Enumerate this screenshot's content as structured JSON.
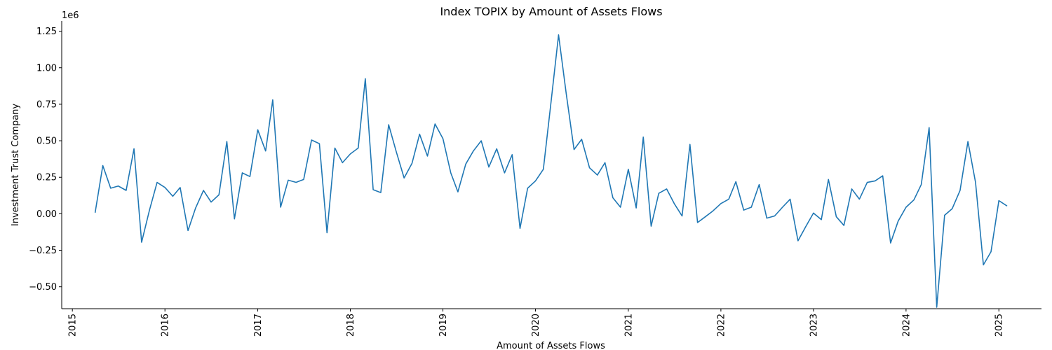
{
  "chart_data": {
    "type": "line",
    "title": "Index TOPIX by Amount of Assets Flows",
    "xlabel": "Amount of Assets Flows",
    "ylabel": "Investment Trust Company",
    "y_offset_label": "1e6",
    "y_scale_factor": 1000000,
    "xlim": [
      "2014-11-20",
      "2025-06-18"
    ],
    "ylim": [
      -650000,
      1320000
    ],
    "grid": false,
    "x_ticks": [
      {
        "value": "2015-01-01",
        "label": "2015"
      },
      {
        "value": "2016-01-01",
        "label": "2016"
      },
      {
        "value": "2017-01-01",
        "label": "2017"
      },
      {
        "value": "2018-01-01",
        "label": "2018"
      },
      {
        "value": "2019-01-01",
        "label": "2019"
      },
      {
        "value": "2020-01-01",
        "label": "2020"
      },
      {
        "value": "2021-01-01",
        "label": "2021"
      },
      {
        "value": "2022-01-01",
        "label": "2022"
      },
      {
        "value": "2023-01-01",
        "label": "2023"
      },
      {
        "value": "2024-01-01",
        "label": "2024"
      },
      {
        "value": "2025-01-01",
        "label": "2025"
      }
    ],
    "y_ticks": [
      {
        "value": -500000,
        "label": "−0.50"
      },
      {
        "value": -250000,
        "label": "−0.25"
      },
      {
        "value": 0,
        "label": "0.00"
      },
      {
        "value": 250000,
        "label": "0.25"
      },
      {
        "value": 500000,
        "label": "0.50"
      },
      {
        "value": 750000,
        "label": "0.75"
      },
      {
        "value": 1000000,
        "label": "1.00"
      },
      {
        "value": 1250000,
        "label": "1.25"
      }
    ],
    "series": [
      {
        "color": "#1f77b4",
        "x": [
          "2015-04-01",
          "2015-05-01",
          "2015-06-01",
          "2015-07-01",
          "2015-08-01",
          "2015-09-01",
          "2015-10-01",
          "2015-11-01",
          "2015-12-01",
          "2016-01-01",
          "2016-02-01",
          "2016-03-01",
          "2016-04-01",
          "2016-05-01",
          "2016-06-01",
          "2016-07-01",
          "2016-08-01",
          "2016-09-01",
          "2016-10-01",
          "2016-11-01",
          "2016-12-01",
          "2017-01-01",
          "2017-02-01",
          "2017-03-01",
          "2017-04-01",
          "2017-05-01",
          "2017-06-01",
          "2017-07-01",
          "2017-08-01",
          "2017-09-01",
          "2017-10-01",
          "2017-11-01",
          "2017-12-01",
          "2018-01-01",
          "2018-02-01",
          "2018-03-01",
          "2018-04-01",
          "2018-05-01",
          "2018-06-01",
          "2018-07-01",
          "2018-08-01",
          "2018-09-01",
          "2018-10-01",
          "2018-11-01",
          "2018-12-01",
          "2019-01-01",
          "2019-02-01",
          "2019-03-01",
          "2019-04-01",
          "2019-05-01",
          "2019-06-01",
          "2019-07-01",
          "2019-08-01",
          "2019-09-01",
          "2019-10-01",
          "2019-11-01",
          "2019-12-01",
          "2020-01-01",
          "2020-02-01",
          "2020-03-01",
          "2020-04-01",
          "2020-05-01",
          "2020-06-01",
          "2020-07-01",
          "2020-08-01",
          "2020-09-01",
          "2020-10-01",
          "2020-11-01",
          "2020-12-01",
          "2021-01-01",
          "2021-02-01",
          "2021-03-01",
          "2021-04-01",
          "2021-05-01",
          "2021-06-01",
          "2021-07-01",
          "2021-08-01",
          "2021-09-01",
          "2021-10-01",
          "2021-11-01",
          "2021-12-01",
          "2022-01-01",
          "2022-02-01",
          "2022-03-01",
          "2022-04-01",
          "2022-05-01",
          "2022-06-01",
          "2022-07-01",
          "2022-08-01",
          "2022-09-01",
          "2022-10-01",
          "2022-11-01",
          "2022-12-01",
          "2023-01-01",
          "2023-02-01",
          "2023-03-01",
          "2023-04-01",
          "2023-05-01",
          "2023-06-01",
          "2023-07-01",
          "2023-08-01",
          "2023-09-01",
          "2023-10-01",
          "2023-11-01",
          "2023-12-01",
          "2024-01-01",
          "2024-02-01",
          "2024-03-01",
          "2024-04-01",
          "2024-05-01",
          "2024-06-01",
          "2024-07-01",
          "2024-08-01",
          "2024-09-01",
          "2024-10-01",
          "2024-11-01",
          "2024-12-01",
          "2025-01-01",
          "2025-02-01"
        ],
        "y": [
          10000,
          330000,
          175000,
          190000,
          160000,
          445000,
          -195000,
          25000,
          215000,
          180000,
          120000,
          180000,
          -115000,
          40000,
          160000,
          80000,
          130000,
          495000,
          -35000,
          280000,
          255000,
          575000,
          430000,
          780000,
          45000,
          230000,
          215000,
          235000,
          505000,
          480000,
          -130000,
          450000,
          350000,
          410000,
          450000,
          925000,
          165000,
          145000,
          610000,
          425000,
          245000,
          345000,
          545000,
          395000,
          615000,
          515000,
          280000,
          150000,
          340000,
          430000,
          500000,
          320000,
          445000,
          280000,
          405000,
          -100000,
          175000,
          225000,
          305000,
          745000,
          1225000,
          825000,
          440000,
          510000,
          315000,
          265000,
          350000,
          110000,
          45000,
          305000,
          40000,
          525000,
          -85000,
          140000,
          170000,
          70000,
          -15000,
          475000,
          -60000,
          -20000,
          20000,
          70000,
          100000,
          220000,
          25000,
          45000,
          200000,
          -30000,
          -15000,
          45000,
          100000,
          -185000,
          -90000,
          5000,
          -40000,
          235000,
          -20000,
          -80000,
          170000,
          100000,
          215000,
          225000,
          260000,
          -200000,
          -50000,
          45000,
          95000,
          200000,
          590000,
          -640000,
          -10000,
          35000,
          160000,
          495000,
          215000,
          -350000,
          -260000,
          90000,
          55000
        ]
      }
    ]
  }
}
